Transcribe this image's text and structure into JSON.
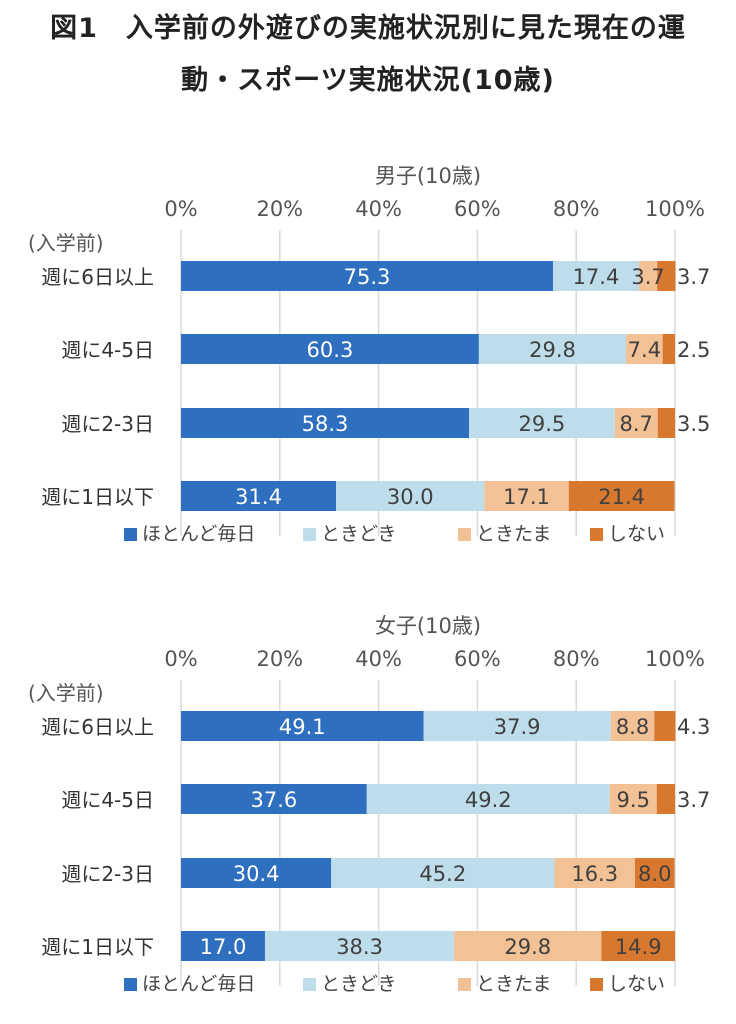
{
  "title": {
    "line1": "図1　入学前の外遊びの実施状況別に見た現在の運",
    "line2": "動・スポーツ実施状況(10歳)"
  },
  "colors": {
    "ほとんど毎日": "#2e6fbf",
    "ときどき": "#bcdde9",
    "ときたま": "#f2c196",
    "しない": "#d8772e"
  },
  "chart_data": [
    {
      "type": "bar",
      "orientation": "horizontal-stacked-100",
      "title": "男子(10歳)",
      "axis_header": "(入学前)",
      "categories": [
        "週に6日以上",
        "週に4-5日",
        "週に2-3日",
        "週に1日以下"
      ],
      "xticks": [
        "0%",
        "20%",
        "40%",
        "60%",
        "80%",
        "100%"
      ],
      "xlim": [
        0,
        100
      ],
      "legend_position": "bottom",
      "series": [
        {
          "name": "ほとんど毎日",
          "values": [
            75.3,
            60.3,
            58.3,
            31.4
          ]
        },
        {
          "name": "ときどき",
          "values": [
            17.4,
            29.8,
            29.5,
            30.0
          ]
        },
        {
          "name": "ときたま",
          "values": [
            3.7,
            7.4,
            8.7,
            17.1
          ]
        },
        {
          "name": "しない",
          "values": [
            3.7,
            2.5,
            3.5,
            21.4
          ]
        }
      ],
      "labels": [
        [
          "75.3",
          "17.4",
          "3.7",
          "3.7"
        ],
        [
          "60.3",
          "29.8",
          "7.4",
          "2.5"
        ],
        [
          "58.3",
          "29.5",
          "8.7",
          "3.5"
        ],
        [
          "31.4",
          "30.0",
          "17.1",
          "21.4"
        ]
      ]
    },
    {
      "type": "bar",
      "orientation": "horizontal-stacked-100",
      "title": "女子(10歳)",
      "axis_header": "(入学前)",
      "categories": [
        "週に6日以上",
        "週に4-5日",
        "週に2-3日",
        "週に1日以下"
      ],
      "xticks": [
        "0%",
        "20%",
        "40%",
        "60%",
        "80%",
        "100%"
      ],
      "xlim": [
        0,
        100
      ],
      "legend_position": "bottom",
      "series": [
        {
          "name": "ほとんど毎日",
          "values": [
            49.1,
            37.6,
            30.4,
            17.0
          ]
        },
        {
          "name": "ときどき",
          "values": [
            37.9,
            49.2,
            45.2,
            38.3
          ]
        },
        {
          "name": "ときたま",
          "values": [
            8.8,
            9.5,
            16.3,
            29.8
          ]
        },
        {
          "name": "しない",
          "values": [
            4.3,
            3.7,
            8.0,
            14.9
          ]
        }
      ],
      "labels": [
        [
          "49.1",
          "37.9",
          "8.8",
          "4.3"
        ],
        [
          "37.6",
          "49.2",
          "9.5",
          "3.7"
        ],
        [
          "30.4",
          "45.2",
          "16.3",
          "8.0"
        ],
        [
          "17.0",
          "38.3",
          "29.8",
          "14.9"
        ]
      ]
    }
  ]
}
